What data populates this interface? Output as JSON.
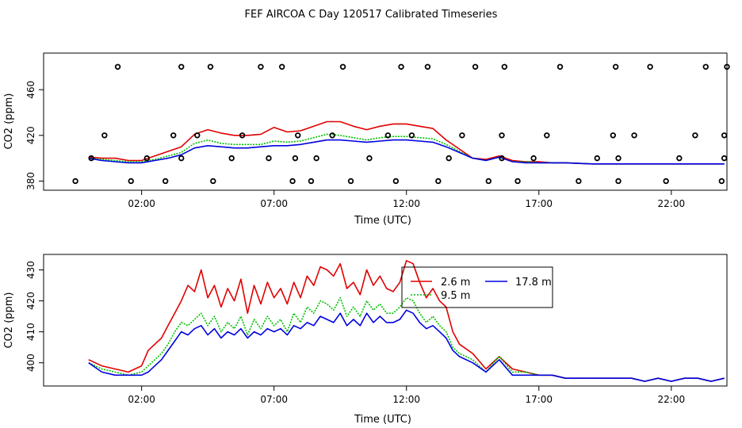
{
  "page_title": "FEF AIRCOA C  Day 120517  Calibrated Timeseries",
  "colors": {
    "red": "#e00000",
    "green": "#00c000",
    "blue": "#0000e0"
  },
  "chart_data": [
    {
      "type": "line",
      "name": "top",
      "xlabel": "Time (UTC)",
      "ylabel": "CO2 (ppm)",
      "xlim": [
        -1.7,
        24.1
      ],
      "ylim": [
        372,
        492
      ],
      "xticks": [
        2,
        7,
        12,
        17,
        22
      ],
      "xtick_labels": [
        "02:00",
        "07:00",
        "12:00",
        "17:00",
        "22:00"
      ],
      "yticks": [
        380,
        420,
        460
      ],
      "ytick_labels": [
        "380",
        "420",
        "460"
      ],
      "series": [
        {
          "name": "2.6 m",
          "color": "red",
          "x": [
            0,
            0.5,
            1,
            1.5,
            2,
            2.5,
            3,
            3.5,
            4,
            4.5,
            5,
            5.5,
            6,
            6.5,
            7,
            7.5,
            8,
            8.5,
            9,
            9.5,
            10,
            10.5,
            11,
            11.5,
            12,
            12.5,
            13,
            13.5,
            14,
            14.5,
            15,
            15.5,
            16,
            16.5,
            17,
            17.5,
            18,
            19,
            20,
            21,
            22,
            23,
            24
          ],
          "values": [
            401,
            400,
            400,
            398,
            398,
            402,
            406,
            410,
            421,
            425,
            422,
            420,
            420,
            421,
            427,
            423,
            424,
            428,
            432,
            432,
            428,
            425,
            428,
            430,
            430,
            428,
            426,
            416,
            408,
            400,
            399,
            402,
            398,
            397,
            397,
            396,
            396,
            395,
            395,
            395,
            395,
            395,
            395
          ]
        },
        {
          "name": "9.5 m",
          "color": "green",
          "x": [
            0,
            0.5,
            1,
            1.5,
            2,
            2.5,
            3,
            3.5,
            4,
            4.5,
            5,
            5.5,
            6,
            6.5,
            7,
            7.5,
            8,
            8.5,
            9,
            9.5,
            10,
            10.5,
            11,
            11.5,
            12,
            12.5,
            13,
            13.5,
            14,
            14.5,
            15,
            15.5,
            16,
            16.5,
            17,
            17.5,
            18,
            19,
            20,
            21,
            22,
            23,
            24
          ],
          "values": [
            400,
            399,
            398,
            397,
            397,
            399,
            402,
            405,
            413,
            416,
            413,
            412,
            412,
            412,
            415,
            414,
            415,
            418,
            421,
            420,
            418,
            416,
            418,
            419,
            419,
            418,
            417,
            412,
            406,
            400,
            398,
            401,
            397,
            397,
            396,
            396,
            396,
            395,
            395,
            395,
            395,
            395,
            395
          ]
        },
        {
          "name": "17.8 m",
          "color": "blue",
          "x": [
            0,
            0.5,
            1,
            1.5,
            2,
            2.5,
            3,
            3.5,
            4,
            4.5,
            5,
            5.5,
            6,
            6.5,
            7,
            7.5,
            8,
            8.5,
            9,
            9.5,
            10,
            10.5,
            11,
            11.5,
            12,
            12.5,
            13,
            13.5,
            14,
            14.5,
            15,
            15.5,
            16,
            16.5,
            17,
            17.5,
            18,
            19,
            20,
            21,
            22,
            23,
            24
          ],
          "values": [
            400,
            398,
            397,
            396,
            396,
            398,
            400,
            403,
            409,
            411,
            410,
            409,
            409,
            410,
            411,
            411,
            412,
            414,
            416,
            416,
            415,
            414,
            415,
            416,
            416,
            415,
            414,
            410,
            405,
            400,
            398,
            401,
            397,
            396,
            396,
            396,
            396,
            395,
            395,
            395,
            395,
            395,
            395
          ]
        },
        {
          "name": "flags",
          "color": "black",
          "style": "points",
          "x": [
            -0.5,
            0.1,
            0.6,
            1.1,
            1.6,
            2.2,
            2.9,
            3.2,
            3.5,
            3.5,
            4.1,
            4.6,
            4.7,
            5.4,
            5.8,
            6.5,
            6.8,
            7.3,
            7.7,
            7.8,
            7.9,
            8.4,
            8.6,
            9.2,
            9.6,
            9.9,
            10.6,
            11.3,
            11.6,
            11.8,
            12.2,
            12.8,
            13.2,
            13.6,
            14.1,
            14.6,
            15.1,
            15.6,
            15.6,
            15.7,
            16.2,
            16.8,
            17.3,
            17.8,
            18.5,
            19.2,
            19.8,
            19.9,
            20.0,
            20.0,
            20.6,
            21.2,
            21.8,
            22.3,
            22.9,
            23.3,
            23.9,
            24.0,
            24.0,
            24.1
          ],
          "values": [
            380,
            400,
            420,
            480,
            380,
            400,
            380,
            420,
            400,
            480,
            420,
            480,
            380,
            400,
            420,
            480,
            400,
            480,
            380,
            400,
            420,
            380,
            400,
            420,
            480,
            380,
            400,
            420,
            380,
            480,
            420,
            480,
            380,
            400,
            420,
            480,
            380,
            400,
            420,
            480,
            380,
            400,
            420,
            480,
            380,
            400,
            420,
            480,
            380,
            400,
            420,
            480,
            380,
            400,
            420,
            480,
            380,
            400,
            420,
            480
          ]
        }
      ]
    },
    {
      "type": "line",
      "name": "bottom",
      "xlabel": "Time (UTC)",
      "ylabel": "CO2 (ppm)",
      "xlim": [
        -1.7,
        24.1
      ],
      "ylim": [
        392.5,
        435
      ],
      "xticks": [
        2,
        7,
        12,
        17,
        22
      ],
      "xtick_labels": [
        "02:00",
        "07:00",
        "12:00",
        "17:00",
        "22:00"
      ],
      "yticks": [
        400,
        410,
        420,
        430
      ],
      "ytick_labels": [
        "400",
        "410",
        "420",
        "430"
      ],
      "legend": {
        "position": "top-right",
        "entries": [
          "2.6 m",
          "9.5 m",
          "17.8 m"
        ]
      },
      "series": [
        {
          "name": "2.6 m",
          "color": "red",
          "x": [
            0,
            0.5,
            1,
            1.5,
            2,
            2.25,
            2.5,
            2.75,
            3,
            3.25,
            3.5,
            3.75,
            4,
            4.25,
            4.5,
            4.75,
            5,
            5.25,
            5.5,
            5.75,
            6,
            6.25,
            6.5,
            6.75,
            7,
            7.25,
            7.5,
            7.75,
            8,
            8.25,
            8.5,
            8.75,
            9,
            9.25,
            9.5,
            9.75,
            10,
            10.25,
            10.5,
            10.75,
            11,
            11.25,
            11.5,
            11.75,
            12,
            12.25,
            12.5,
            12.75,
            13,
            13.25,
            13.5,
            13.75,
            14,
            14.5,
            15,
            15.5,
            16,
            16.5,
            17,
            17.5,
            18,
            18.5,
            19,
            19.5,
            20,
            20.5,
            21,
            21.5,
            22,
            22.5,
            23,
            23.5,
            24
          ],
          "values": [
            401,
            399,
            398,
            397,
            399,
            404,
            406,
            408,
            412,
            416,
            420,
            425,
            423,
            430,
            421,
            425,
            418,
            424,
            420,
            427,
            416,
            425,
            419,
            426,
            421,
            424,
            419,
            426,
            421,
            428,
            425,
            431,
            430,
            428,
            432,
            424,
            426,
            422,
            430,
            425,
            428,
            424,
            423,
            426,
            433,
            432,
            426,
            421,
            424,
            420,
            418,
            410,
            406,
            403,
            398,
            402,
            398,
            397,
            396,
            396,
            395,
            395,
            395,
            395,
            395,
            395,
            394,
            395,
            394,
            395,
            395,
            394,
            395
          ]
        },
        {
          "name": "9.5 m",
          "color": "green",
          "x": [
            0,
            0.5,
            1,
            1.5,
            2,
            2.25,
            2.5,
            2.75,
            3,
            3.25,
            3.5,
            3.75,
            4,
            4.25,
            4.5,
            4.75,
            5,
            5.25,
            5.5,
            5.75,
            6,
            6.25,
            6.5,
            6.75,
            7,
            7.25,
            7.5,
            7.75,
            8,
            8.25,
            8.5,
            8.75,
            9,
            9.25,
            9.5,
            9.75,
            10,
            10.25,
            10.5,
            10.75,
            11,
            11.25,
            11.5,
            11.75,
            12,
            12.25,
            12.5,
            12.75,
            13,
            13.25,
            13.5,
            13.75,
            14,
            14.5,
            15,
            15.5,
            16,
            16.5,
            17,
            17.5,
            18,
            18.5,
            19,
            19.5,
            20,
            20.5,
            21,
            21.5,
            22,
            22.5,
            23,
            23.5,
            24
          ],
          "values": [
            400,
            398,
            397,
            396,
            397,
            399,
            401,
            403,
            406,
            410,
            413,
            412,
            414,
            416,
            412,
            415,
            410,
            413,
            411,
            415,
            409,
            414,
            411,
            415,
            412,
            414,
            410,
            416,
            413,
            418,
            416,
            420,
            419,
            417,
            421,
            415,
            418,
            415,
            420,
            417,
            419,
            416,
            416,
            418,
            421,
            420,
            416,
            413,
            415,
            412,
            410,
            405,
            403,
            401,
            397,
            402,
            397,
            397,
            396,
            396,
            395,
            395,
            395,
            395,
            395,
            395,
            394,
            395,
            394,
            395,
            395,
            394,
            395
          ]
        },
        {
          "name": "17.8 m",
          "color": "blue",
          "x": [
            0,
            0.5,
            1,
            1.5,
            2,
            2.25,
            2.5,
            2.75,
            3,
            3.25,
            3.5,
            3.75,
            4,
            4.25,
            4.5,
            4.75,
            5,
            5.25,
            5.5,
            5.75,
            6,
            6.25,
            6.5,
            6.75,
            7,
            7.25,
            7.5,
            7.75,
            8,
            8.25,
            8.5,
            8.75,
            9,
            9.25,
            9.5,
            9.75,
            10,
            10.25,
            10.5,
            10.75,
            11,
            11.25,
            11.5,
            11.75,
            12,
            12.25,
            12.5,
            12.75,
            13,
            13.25,
            13.5,
            13.75,
            14,
            14.5,
            15,
            15.5,
            16,
            16.5,
            17,
            17.5,
            18,
            18.5,
            19,
            19.5,
            20,
            20.5,
            21,
            21.5,
            22,
            22.5,
            23,
            23.5,
            24
          ],
          "values": [
            400,
            397,
            396,
            396,
            396,
            397,
            399,
            401,
            404,
            407,
            410,
            409,
            411,
            412,
            409,
            411,
            408,
            410,
            409,
            411,
            408,
            410,
            409,
            411,
            410,
            411,
            409,
            412,
            411,
            413,
            412,
            415,
            414,
            413,
            416,
            412,
            414,
            412,
            416,
            413,
            415,
            413,
            413,
            414,
            417,
            416,
            413,
            411,
            412,
            410,
            408,
            404,
            402,
            400,
            397,
            401,
            396,
            396,
            396,
            396,
            395,
            395,
            395,
            395,
            395,
            395,
            394,
            395,
            394,
            395,
            395,
            394,
            395
          ]
        }
      ]
    }
  ]
}
